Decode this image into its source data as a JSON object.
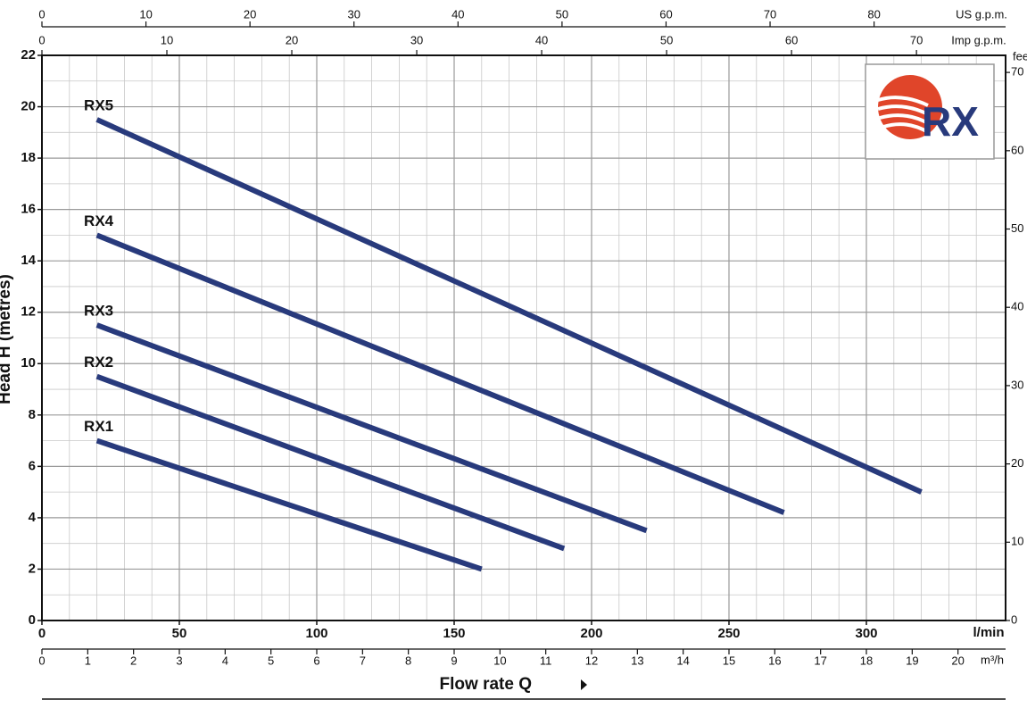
{
  "chart_data": {
    "type": "line",
    "ylabel": "Head H (metres)",
    "xlabel": "Flow rate Q",
    "xunit": "l/min",
    "xlim": [
      0,
      350
    ],
    "xticks": [
      0,
      50,
      100,
      150,
      200,
      250,
      300
    ],
    "x_minor_ticks": [
      10,
      20,
      30,
      40,
      60,
      70,
      80,
      90,
      110,
      120,
      130,
      140,
      160,
      170,
      180,
      190,
      210,
      220,
      230,
      240,
      260,
      270,
      280,
      290,
      310,
      320,
      330,
      340
    ],
    "ylim": [
      0,
      22
    ],
    "yticks": [
      0,
      2,
      4,
      6,
      8,
      10,
      12,
      14,
      16,
      18,
      20,
      22
    ],
    "y_minor_ticks": [
      1,
      3,
      5,
      7,
      9,
      11,
      13,
      15,
      17,
      19,
      21
    ],
    "y2label": "feet",
    "y2lim": [
      0,
      72.18
    ],
    "y2ticks": [
      0,
      10,
      20,
      30,
      40,
      50,
      60,
      70
    ],
    "us_gpm_label": "US g.p.m.",
    "us_gpm_lim": [
      0,
      92.47
    ],
    "us_gpm_ticks": [
      0,
      10,
      20,
      30,
      40,
      50,
      60,
      70,
      80
    ],
    "imp_gpm_label": "Imp g.p.m.",
    "imp_gpm_lim": [
      0,
      76.99
    ],
    "imp_gpm_ticks": [
      0,
      10,
      20,
      30,
      40,
      50,
      60,
      70
    ],
    "m3h_label": "m³/h",
    "m3h_lim": [
      0,
      21
    ],
    "m3h_ticks": [
      0,
      1,
      2,
      3,
      4,
      5,
      6,
      7,
      8,
      9,
      10,
      11,
      12,
      13,
      14,
      15,
      16,
      17,
      18,
      19,
      20
    ],
    "grid": true,
    "logo": "RX",
    "series": [
      {
        "name": "RX5",
        "color": "#283a7c",
        "x": [
          20,
          320
        ],
        "values": [
          19.5,
          5
        ]
      },
      {
        "name": "RX4",
        "color": "#283a7c",
        "x": [
          20,
          270
        ],
        "values": [
          15,
          4.2
        ]
      },
      {
        "name": "RX3",
        "color": "#283a7c",
        "x": [
          20,
          220
        ],
        "values": [
          11.5,
          3.5
        ]
      },
      {
        "name": "RX2",
        "color": "#283a7c",
        "x": [
          20,
          190
        ],
        "values": [
          9.5,
          2.8
        ]
      },
      {
        "name": "RX1",
        "color": "#283a7c",
        "x": [
          20,
          160
        ],
        "values": [
          7,
          2
        ]
      }
    ]
  }
}
